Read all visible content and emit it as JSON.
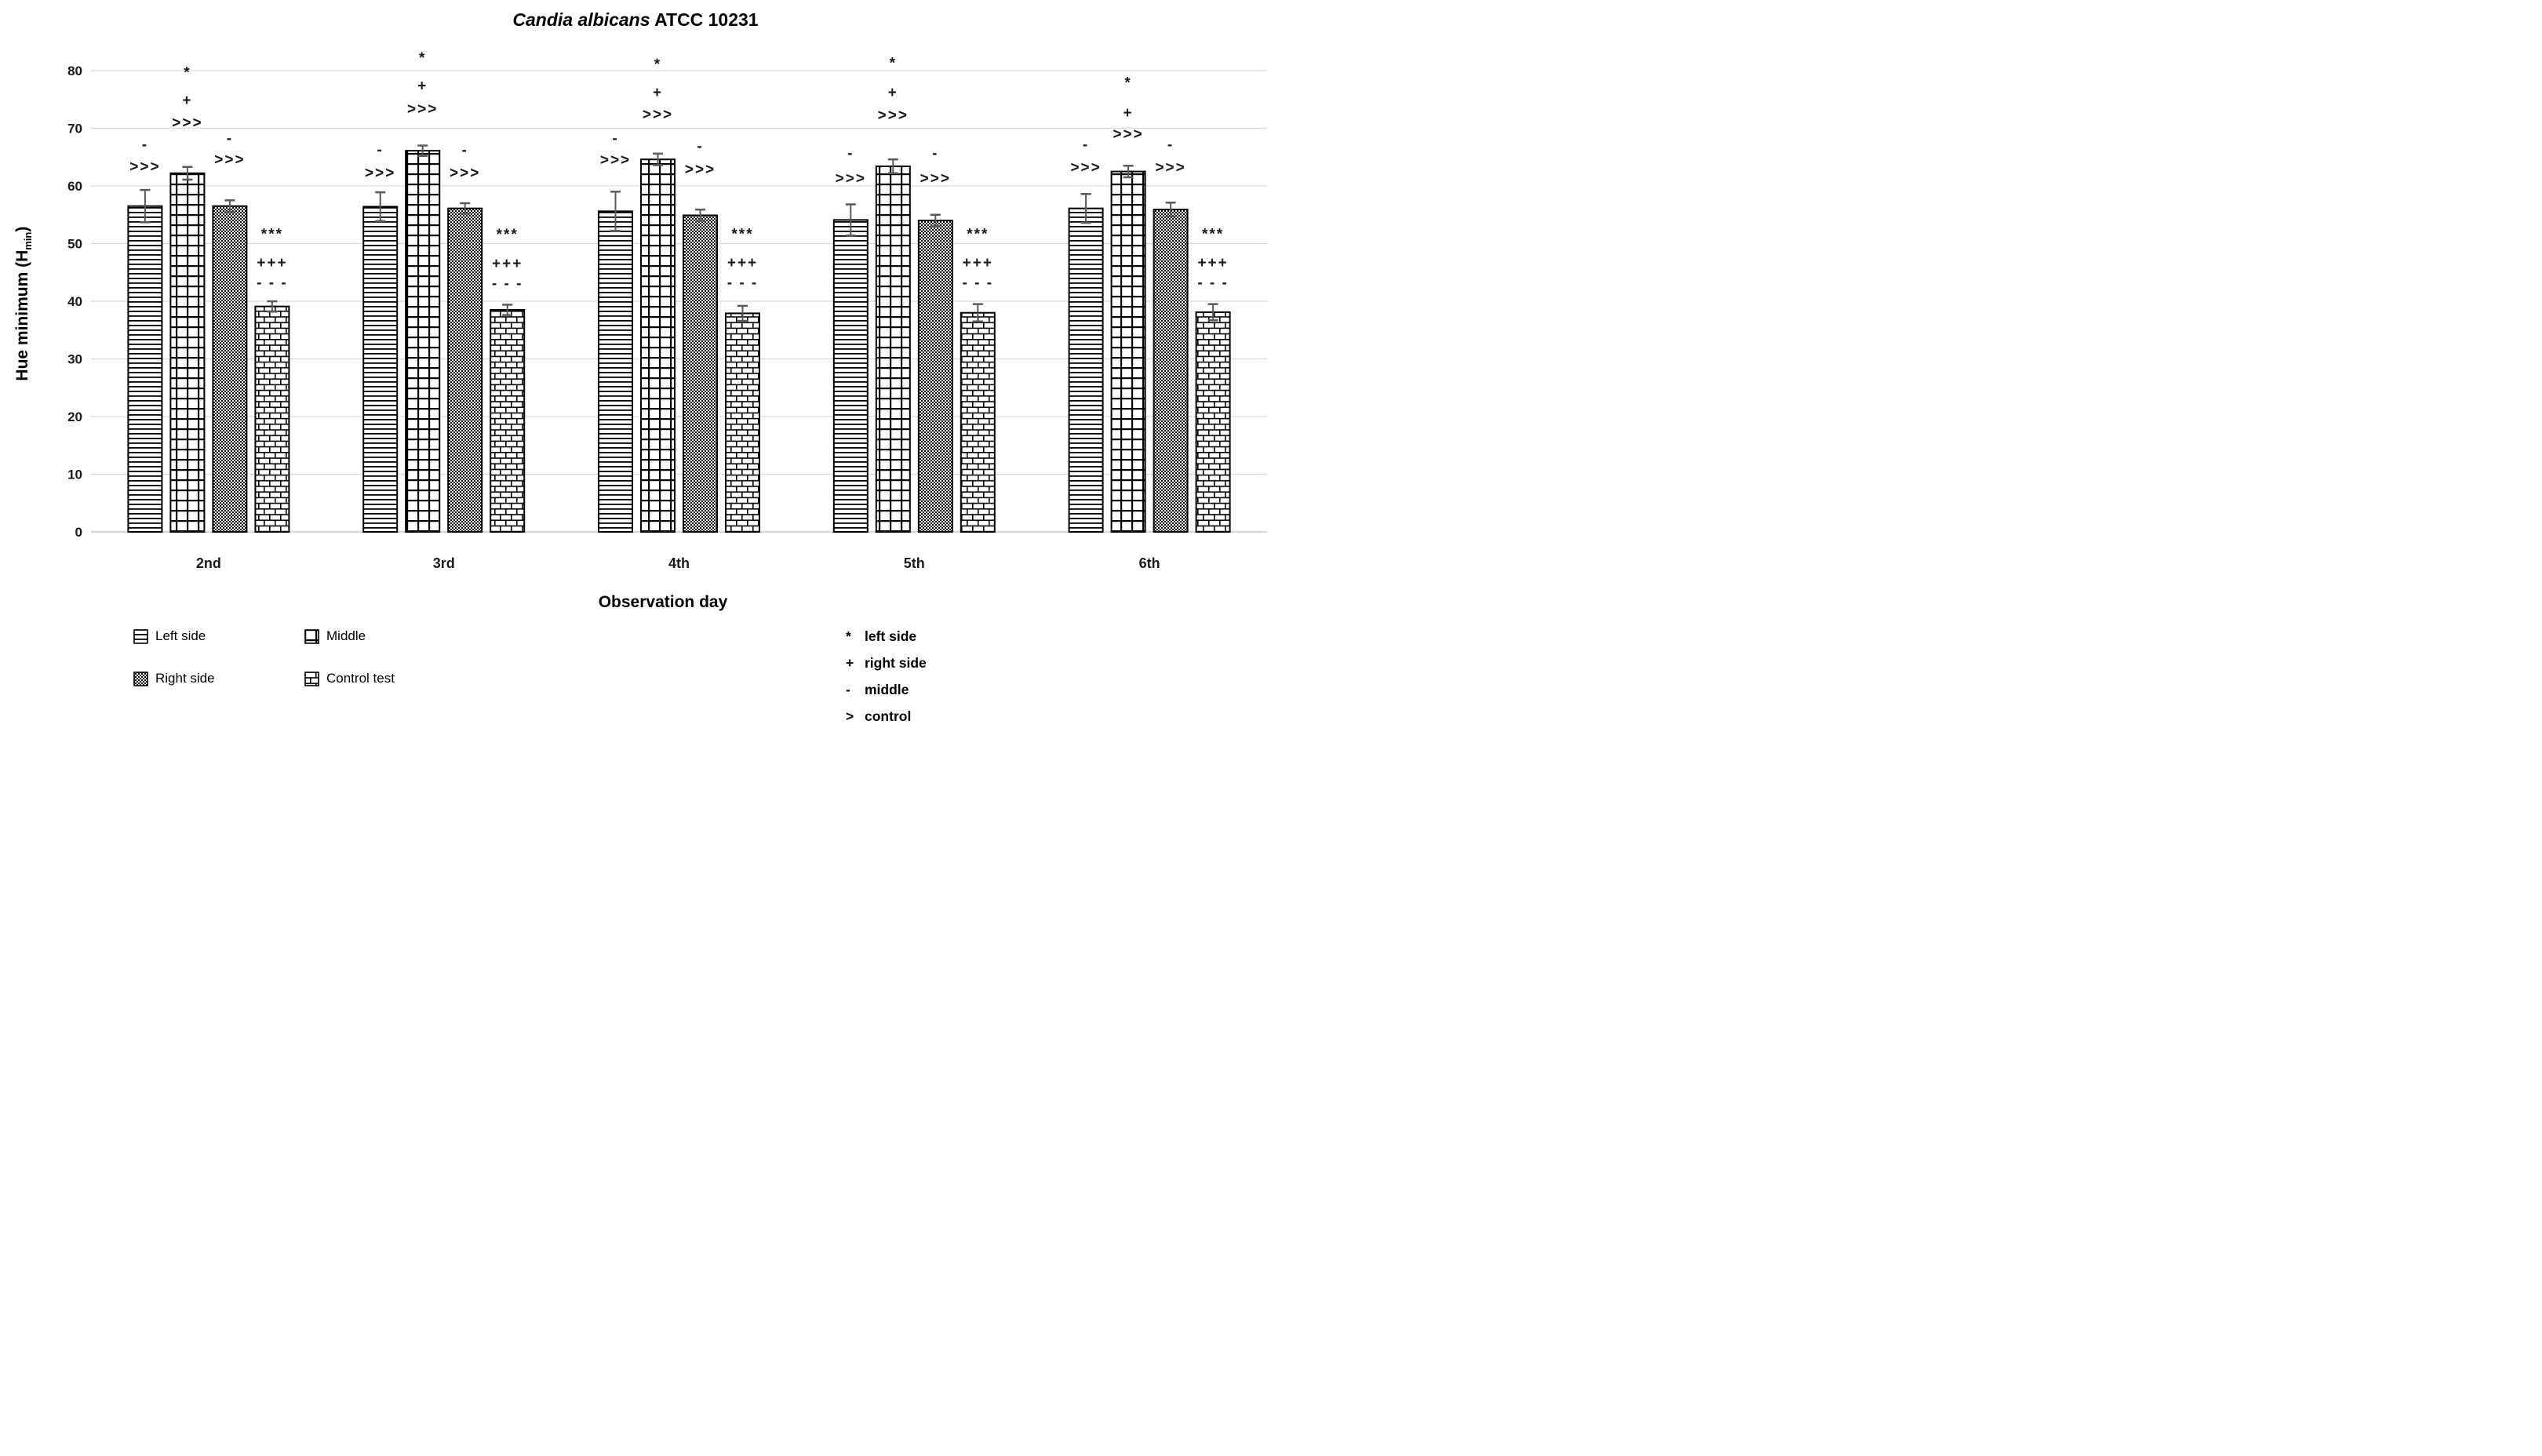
{
  "chart_data": {
    "type": "bar",
    "title_italic": "Candia albicans",
    "title_regular": " ATCC 10231",
    "xlabel": "Observation day",
    "ylabel_prefix": "Hue minimum (H",
    "ylabel_sub": "min",
    "ylabel_suffix": ")",
    "ylim": [
      0,
      80
    ],
    "yticks": [
      0,
      10,
      20,
      30,
      40,
      50,
      60,
      70,
      80
    ],
    "grid": true,
    "legend_position": "bottom",
    "categories": [
      "2nd",
      "3rd",
      "4th",
      "5th",
      "6th"
    ],
    "series": [
      {
        "name": "Left side",
        "pattern": "hlines",
        "values": [
          56.5,
          56.4,
          55.6,
          54.1,
          56.1
        ],
        "errors": [
          2.8,
          2.5,
          3.4,
          2.7,
          2.5
        ]
      },
      {
        "name": "Middle",
        "pattern": "grid",
        "values": [
          62.2,
          66.1,
          64.6,
          63.4,
          62.5
        ],
        "errors": [
          1.1,
          0.9,
          1.0,
          1.2,
          1.0
        ]
      },
      {
        "name": "Right side",
        "pattern": "checker",
        "values": [
          56.5,
          56.1,
          54.9,
          54.0,
          55.9
        ],
        "errors": [
          1.0,
          0.9,
          1.0,
          1.0,
          1.2
        ]
      },
      {
        "name": "Control test",
        "pattern": "brick",
        "values": [
          39.1,
          38.5,
          37.9,
          38.0,
          38.1
        ],
        "errors": [
          0.9,
          0.9,
          1.3,
          1.5,
          1.4
        ]
      }
    ],
    "annotations": [
      [
        [
          {
            "t": "-",
            "y": 67.3
          },
          {
            "t": ">>>",
            "y": 63.5
          }
        ],
        [
          {
            "t": "*",
            "y": 79.8
          },
          {
            "t": "+",
            "y": 75.0
          },
          {
            "t": ">>>",
            "y": 71.1
          }
        ],
        [
          {
            "t": "-",
            "y": 68.4
          },
          {
            "t": ">>>",
            "y": 64.7
          }
        ],
        [
          {
            "t": "***",
            "y": 51.8
          },
          {
            "t": "+++",
            "y": 46.8
          },
          {
            "t": "- - -",
            "y": 43.3
          }
        ]
      ],
      [
        [
          {
            "t": "-",
            "y": 66.4
          },
          {
            "t": ">>>",
            "y": 62.4
          }
        ],
        [
          {
            "t": "*",
            "y": 82.3
          },
          {
            "t": "+",
            "y": 77.5
          },
          {
            "t": ">>>",
            "y": 73.5
          }
        ],
        [
          {
            "t": "-",
            "y": 66.3
          },
          {
            "t": ">>>",
            "y": 62.4
          }
        ],
        [
          {
            "t": "***",
            "y": 51.7
          },
          {
            "t": "+++",
            "y": 46.7
          },
          {
            "t": "- - -",
            "y": 43.2
          }
        ]
      ],
      [
        [
          {
            "t": "-",
            "y": 68.4
          },
          {
            "t": ">>>",
            "y": 64.6
          }
        ],
        [
          {
            "t": "*",
            "y": 81.2
          },
          {
            "t": "+",
            "y": 76.3
          },
          {
            "t": ">>>",
            "y": 72.5
          }
        ],
        [
          {
            "t": "-",
            "y": 67.0
          },
          {
            "t": ">>>",
            "y": 63.0
          }
        ],
        [
          {
            "t": "***",
            "y": 51.8
          },
          {
            "t": "+++",
            "y": 46.8
          },
          {
            "t": "- - -",
            "y": 43.3
          }
        ]
      ],
      [
        [
          {
            "t": "-",
            "y": 65.8
          },
          {
            "t": ">>>",
            "y": 61.4
          }
        ],
        [
          {
            "t": "*",
            "y": 81.4
          },
          {
            "t": "+",
            "y": 76.3
          },
          {
            "t": ">>>",
            "y": 72.4
          }
        ],
        [
          {
            "t": "-",
            "y": 65.8
          },
          {
            "t": ">>>",
            "y": 61.4
          }
        ],
        [
          {
            "t": "***",
            "y": 51.8
          },
          {
            "t": "+++",
            "y": 46.8
          },
          {
            "t": "- - -",
            "y": 43.3
          }
        ]
      ],
      [
        [
          {
            "t": "-",
            "y": 67.3
          },
          {
            "t": ">>>",
            "y": 63.3
          }
        ],
        [
          {
            "t": "*",
            "y": 78.0
          },
          {
            "t": "+",
            "y": 72.8
          },
          {
            "t": ">>>",
            "y": 69.1
          }
        ],
        [
          {
            "t": "-",
            "y": 67.3
          },
          {
            "t": ">>>",
            "y": 63.3
          }
        ],
        [
          {
            "t": "***",
            "y": 51.8
          },
          {
            "t": "+++",
            "y": 46.8
          },
          {
            "t": "- - -",
            "y": 43.3
          }
        ]
      ]
    ],
    "significance_key": [
      {
        "symbol": "*",
        "label": "left side"
      },
      {
        "symbol": "+",
        "label": "right side"
      },
      {
        "symbol": "-",
        "label": "middle"
      },
      {
        "symbol": ">",
        "label": "control"
      }
    ],
    "colors": {
      "grid_line": "#d9d9d9",
      "error_bar": "#595959",
      "bar_stroke": "#000000",
      "background": "#ffffff"
    }
  }
}
